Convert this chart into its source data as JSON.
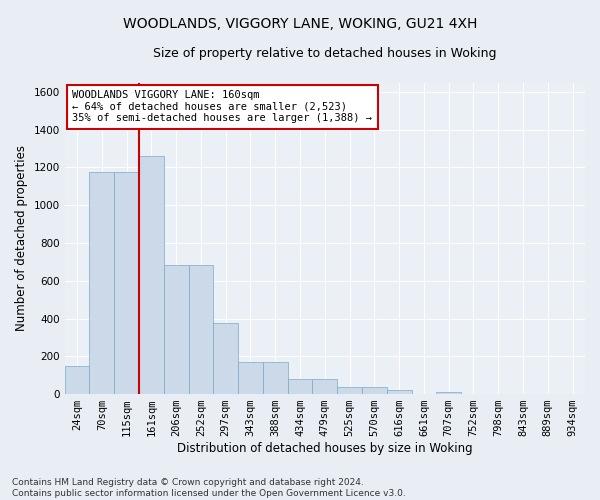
{
  "title": "WOODLANDS, VIGGORY LANE, WOKING, GU21 4XH",
  "subtitle": "Size of property relative to detached houses in Woking",
  "xlabel": "Distribution of detached houses by size in Woking",
  "ylabel": "Number of detached properties",
  "footnote": "Contains HM Land Registry data © Crown copyright and database right 2024.\nContains public sector information licensed under the Open Government Licence v3.0.",
  "categories": [
    "24sqm",
    "70sqm",
    "115sqm",
    "161sqm",
    "206sqm",
    "252sqm",
    "297sqm",
    "343sqm",
    "388sqm",
    "434sqm",
    "479sqm",
    "525sqm",
    "570sqm",
    "616sqm",
    "661sqm",
    "707sqm",
    "752sqm",
    "798sqm",
    "843sqm",
    "889sqm",
    "934sqm"
  ],
  "values": [
    150,
    1175,
    1175,
    1260,
    685,
    685,
    375,
    170,
    170,
    80,
    80,
    35,
    35,
    20,
    0,
    10,
    0,
    0,
    0,
    0,
    0
  ],
  "bar_color": "#ccd9e8",
  "bar_edge_color": "#7aaac8",
  "vline_color": "#cc0000",
  "annotation_text": "WOODLANDS VIGGORY LANE: 160sqm\n← 64% of detached houses are smaller (2,523)\n35% of semi-detached houses are larger (1,388) →",
  "annotation_box_color": "#ffffff",
  "annotation_box_edge_color": "#cc0000",
  "ylim": [
    0,
    1650
  ],
  "yticks": [
    0,
    200,
    400,
    600,
    800,
    1000,
    1200,
    1400,
    1600
  ],
  "bg_color": "#e8eef4",
  "plot_bg_color": "#eaf0f6",
  "grid_color": "#ffffff",
  "title_fontsize": 10,
  "subtitle_fontsize": 9,
  "label_fontsize": 8.5,
  "tick_fontsize": 7.5,
  "annot_fontsize": 7.5
}
